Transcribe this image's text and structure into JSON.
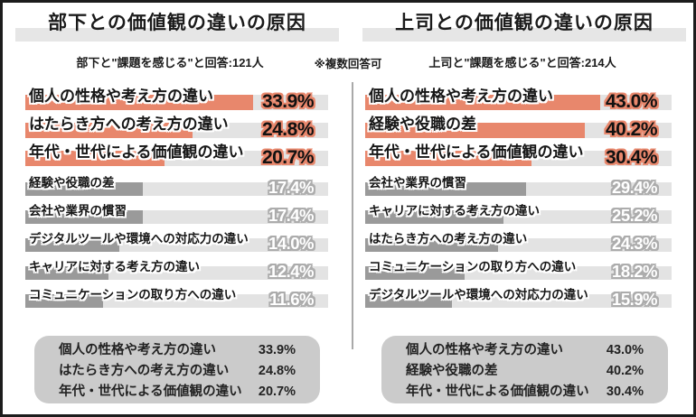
{
  "meta": {
    "note": "※複数回答可"
  },
  "colors": {
    "accent": "#e8876c",
    "gray_bar": "#9a9a9a",
    "track": "#e3e3e3",
    "title_band": "#e6e6e6",
    "summary_box": "#cbcbcb",
    "divider": "#a9a9a9",
    "text": "#1b1b1b"
  },
  "chart_data": [
    {
      "type": "bar",
      "orientation": "horizontal",
      "title": "部下との価値観の違いの原因",
      "subtitle": "部下と\"課題を感じる\"と回答:121人",
      "categories": [
        "個人の性格や考え方の違い",
        "はたらき方への考え方の違い",
        "年代・世代による価値観の違い",
        "経験や役職の差",
        "会社や業界の慣習",
        "デジタルツールや環境への対応力の違い",
        "キャリアに対する考え方の違い",
        "コミュニケーションの取り方への違い"
      ],
      "values": [
        33.9,
        24.8,
        20.7,
        17.4,
        17.4,
        14.0,
        12.4,
        11.6
      ],
      "value_labels": [
        "33.9%",
        "24.8%",
        "20.7%",
        "17.4%",
        "17.4%",
        "14.0%",
        "12.4%",
        "11.6%"
      ],
      "highlight_top": 3,
      "xlim": [
        0,
        45
      ],
      "grid": false,
      "legend": "none"
    },
    {
      "type": "bar",
      "orientation": "horizontal",
      "title": "上司との価値観の違いの原因",
      "subtitle": "上司と\"課題を感じる\"と回答:214人",
      "categories": [
        "個人の性格や考え方の違い",
        "経験や役職の差",
        "年代・世代による価値観の違い",
        "会社や業界の慣習",
        "キャリアに対する考え方の違い",
        "はたらき方への考え方の違い",
        "コミュニケーションの取り方への違い",
        "デジタルツールや環境への対応力の違い"
      ],
      "values": [
        43.0,
        40.2,
        30.4,
        29.4,
        25.2,
        24.3,
        18.2,
        15.9
      ],
      "value_labels": [
        "43.0%",
        "40.2%",
        "30.4%",
        "29.4%",
        "25.2%",
        "24.3%",
        "18.2%",
        "15.9%"
      ],
      "highlight_top": 3,
      "xlim": [
        0,
        56
      ],
      "grid": false,
      "legend": "none"
    }
  ],
  "summaries": [
    {
      "rows": [
        {
          "label": "個人の性格や考え方の違い",
          "value": "33.9%"
        },
        {
          "label": "はたらき方への考え方の違い",
          "value": "24.8%"
        },
        {
          "label": "年代・世代による価値観の違い",
          "value": "20.7%"
        }
      ]
    },
    {
      "rows": [
        {
          "label": "個人の性格や考え方の違い",
          "value": "43.0%"
        },
        {
          "label": "経験や役職の差",
          "value": "40.2%"
        },
        {
          "label": "年代・世代による価値観の違い",
          "value": "30.4%"
        }
      ]
    }
  ]
}
